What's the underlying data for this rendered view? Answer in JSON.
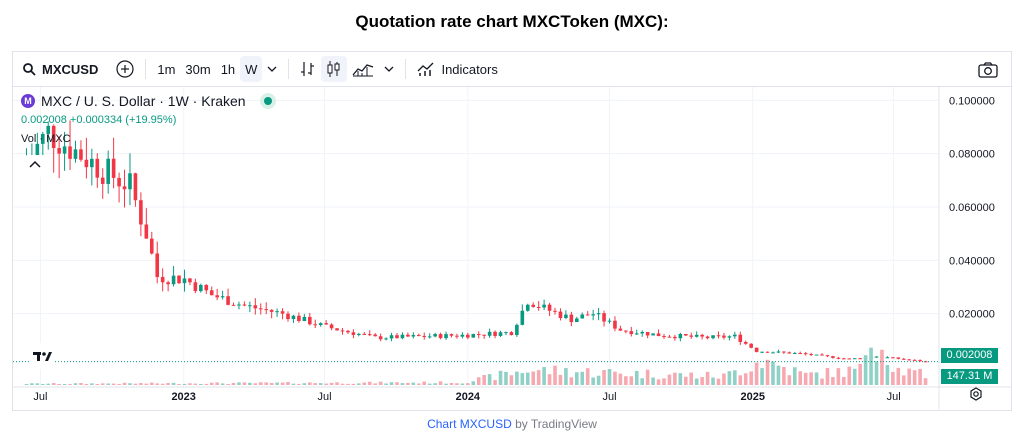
{
  "page": {
    "title": "Quotation rate chart MXCToken (MXC):",
    "credit_link": "Chart MXCUSD",
    "credit_suffix": "by TradingView"
  },
  "toolbar": {
    "symbol": "MXCUSD",
    "intervals": [
      "1m",
      "30m",
      "1h",
      "W"
    ],
    "active_interval": "W",
    "indicators_label": "Indicators"
  },
  "legend": {
    "logo_letter": "M",
    "title": "MXC / U. S. Dollar · 1W · Kraken",
    "stats": "0.002008  +0.000334 (+19.95%)",
    "volume_label": "Vol · MXC"
  },
  "colors": {
    "up": "#089981",
    "down": "#f23645",
    "up_volume": "#8fd1c6",
    "down_volume": "#f7a9b1",
    "grid": "#f0f3fa",
    "text": "#131722"
  },
  "icons": [
    "search-icon",
    "add-compare-icon",
    "chevron-down-icon",
    "bar-style-icon",
    "candles-icon",
    "area-icon",
    "indicators-icon",
    "camera-icon",
    "settings-icon",
    "tradingview-logo"
  ],
  "chart_data": {
    "type": "candlestick",
    "symbol": "MXCUSD",
    "interval": "1W",
    "exchange": "Kraken",
    "y_axis": {
      "ticks": [
        "0.100000",
        "0.080000",
        "0.060000",
        "0.040000",
        "0.020000"
      ],
      "tick_values": [
        0.1,
        0.08,
        0.06,
        0.04,
        0.02
      ],
      "range": [
        0,
        0.105
      ]
    },
    "x_axis": {
      "tick_labels": [
        "Jul",
        "2023",
        "Jul",
        "2024",
        "Jul",
        "2025",
        "Jul"
      ],
      "tick_dates": [
        "2022-07-01",
        "2023-01-01",
        "2023-07-01",
        "2024-01-01",
        "2024-07-01",
        "2025-01-01",
        "2025-07-01"
      ],
      "range": [
        "2022-06-06",
        "2025-08-18"
      ]
    },
    "last_price": "0.002008",
    "last_price_value": 0.002008,
    "volume_label": "147.31 M",
    "price_anchors": [
      {
        "date": "2022-06-13",
        "close": 0.077
      },
      {
        "date": "2022-07-11",
        "close": 0.088
      },
      {
        "date": "2022-08-15",
        "close": 0.081
      },
      {
        "date": "2022-09-19",
        "close": 0.074
      },
      {
        "date": "2022-10-24",
        "close": 0.068
      },
      {
        "date": "2022-11-14",
        "close": 0.05
      },
      {
        "date": "2022-11-28",
        "close": 0.034
      },
      {
        "date": "2023-01-02",
        "close": 0.033
      },
      {
        "date": "2023-02-06",
        "close": 0.027
      },
      {
        "date": "2023-03-20",
        "close": 0.023
      },
      {
        "date": "2023-05-08",
        "close": 0.02
      },
      {
        "date": "2023-07-03",
        "close": 0.015
      },
      {
        "date": "2023-09-04",
        "close": 0.011
      },
      {
        "date": "2023-11-06",
        "close": 0.0115
      },
      {
        "date": "2024-01-01",
        "close": 0.012
      },
      {
        "date": "2024-02-26",
        "close": 0.013
      },
      {
        "date": "2024-03-18",
        "close": 0.025
      },
      {
        "date": "2024-04-08",
        "close": 0.022
      },
      {
        "date": "2024-05-13",
        "close": 0.018
      },
      {
        "date": "2024-06-10",
        "close": 0.02
      },
      {
        "date": "2024-07-15",
        "close": 0.014
      },
      {
        "date": "2024-09-02",
        "close": 0.012
      },
      {
        "date": "2024-11-04",
        "close": 0.011
      },
      {
        "date": "2024-12-09",
        "close": 0.0115
      },
      {
        "date": "2025-01-06",
        "close": 0.006
      },
      {
        "date": "2025-03-03",
        "close": 0.005
      },
      {
        "date": "2025-05-05",
        "close": 0.003
      },
      {
        "date": "2025-06-09",
        "close": 0.004
      },
      {
        "date": "2025-08-11",
        "close": 0.002008
      }
    ],
    "volume_anchors": [
      {
        "date": "2022-06-13",
        "level": 0.05
      },
      {
        "date": "2023-12-25",
        "level": 0.1
      },
      {
        "date": "2024-03-18",
        "level": 0.6
      },
      {
        "date": "2024-11-25",
        "level": 0.35
      },
      {
        "date": "2025-01-13",
        "level": 1.0
      },
      {
        "date": "2025-03-10",
        "level": 0.4
      },
      {
        "date": "2025-05-19",
        "level": 0.6
      },
      {
        "date": "2025-06-02",
        "level": 2.2
      },
      {
        "date": "2025-07-07",
        "level": 0.6
      },
      {
        "date": "2025-08-11",
        "level": 0.4
      }
    ]
  }
}
